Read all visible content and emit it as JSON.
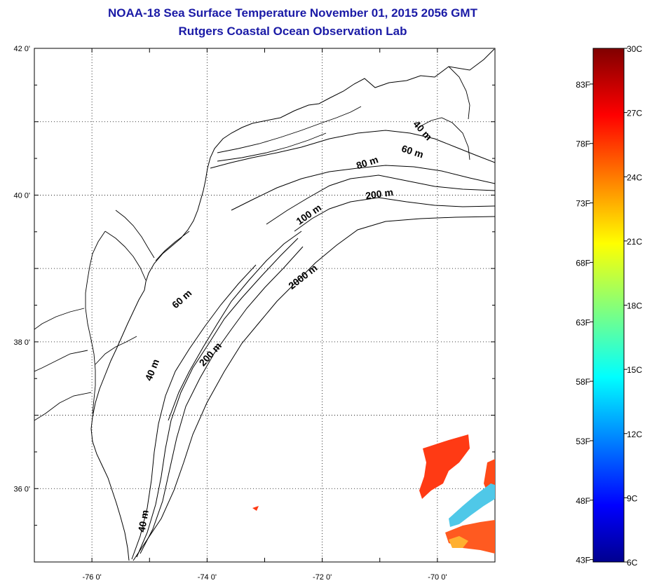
{
  "title": {
    "line1": "NOAA-18 Sea Surface Temperature November 01, 2015 2056 GMT",
    "line2": "Rutgers Coastal Ocean Observation Lab"
  },
  "map": {
    "lon_range": [
      -77.0,
      -69.0
    ],
    "lat_range": [
      35.0,
      42.0
    ],
    "lat_labels": [
      {
        "lat": 42,
        "text": "42 0'"
      },
      {
        "lat": 40,
        "text": "40 0'"
      },
      {
        "lat": 38,
        "text": "38 0'"
      },
      {
        "lat": 36,
        "text": "36 0'"
      }
    ],
    "lon_labels": [
      {
        "lon": -76,
        "text": "-76 0'"
      },
      {
        "lon": -74,
        "text": "-74 0'"
      },
      {
        "lon": -72,
        "text": "-72 0'"
      },
      {
        "lon": -70,
        "text": "-70 0'"
      }
    ],
    "grid": "dotted",
    "contour_labels": [
      {
        "text": "40 m",
        "lon": -70.3,
        "lat": 40.85,
        "rot": 48
      },
      {
        "text": "60 m",
        "lon": -70.45,
        "lat": 40.55,
        "rot": 18
      },
      {
        "text": "80 m",
        "lon": -71.2,
        "lat": 40.4,
        "rot": -18
      },
      {
        "text": "200 m",
        "lon": -71.0,
        "lat": 39.97,
        "rot": -8
      },
      {
        "text": "100 m",
        "lon": -72.2,
        "lat": 39.7,
        "rot": -35
      },
      {
        "text": "2000 m",
        "lon": -72.3,
        "lat": 38.85,
        "rot": -38
      },
      {
        "text": "60 m",
        "lon": -74.4,
        "lat": 38.55,
        "rot": -42
      },
      {
        "text": "200 m",
        "lon": -73.9,
        "lat": 37.8,
        "rot": -48
      },
      {
        "text": "40 m",
        "lon": -74.9,
        "lat": 37.6,
        "rot": -68
      },
      {
        "text": "40 m",
        "lon": -75.05,
        "lat": 35.55,
        "rot": -80
      }
    ]
  },
  "colorbar": {
    "celsius": [
      "30C",
      "27C",
      "24C",
      "21C",
      "18C",
      "15C",
      "12C",
      "9C",
      "6C"
    ],
    "fahrenheit": [
      "83F",
      "78F",
      "73F",
      "68F",
      "63F",
      "58F",
      "53F",
      "48F",
      "43F"
    ],
    "min_c": 6,
    "max_c": 30
  }
}
